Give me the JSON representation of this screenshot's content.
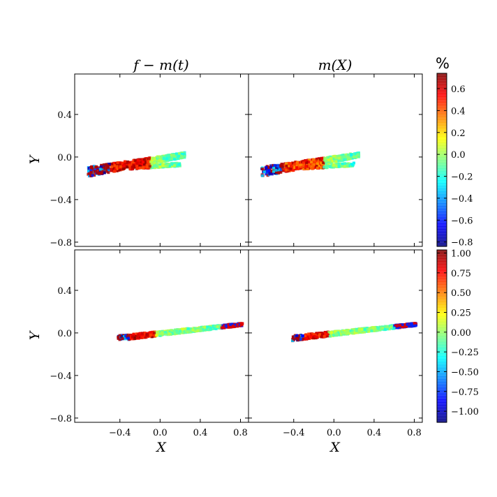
{
  "chart_data": {
    "type": "heatmap",
    "colormap": "jet",
    "panel_titles": [
      "f − m(t)",
      "m(X)"
    ],
    "xlabel": "X",
    "ylabel": "Y",
    "xlim": [
      -0.85,
      0.88
    ],
    "ylim": [
      -0.84,
      0.78
    ],
    "xticks": [
      -0.4,
      0.0,
      0.4,
      0.8
    ],
    "yticks": [
      -0.8,
      -0.4,
      0.0,
      0.4
    ],
    "xtick_labels": [
      "−0.4",
      "0.0",
      "0.4",
      "0.8"
    ],
    "ytick_labels": [
      "−0.8",
      "−0.4",
      "0.0",
      "0.4"
    ],
    "colorbars": [
      {
        "unit": "%",
        "range": [
          -0.84,
          0.74
        ],
        "ticks": [
          -0.8,
          -0.6,
          -0.4,
          -0.2,
          0.0,
          0.2,
          0.4,
          0.6
        ],
        "tick_labels": [
          "−0.8",
          "−0.6",
          "−0.4",
          "−0.2",
          "0.0",
          "0.2",
          "0.4",
          "0.6"
        ]
      },
      {
        "range": [
          -1.14,
          1.04
        ],
        "ticks": [
          -1.0,
          -0.75,
          -0.5,
          -0.25,
          0.0,
          0.25,
          0.5,
          0.75,
          1.0
        ],
        "tick_labels": [
          "−1.00",
          "−0.75",
          "−0.50",
          "−0.25",
          "0.00",
          "0.25",
          "0.50",
          "0.75",
          "1.00"
        ]
      }
    ],
    "distributions": [
      {
        "panel": "top",
        "x_range": [
          -0.72,
          0.25
        ],
        "band": [
          [
            -0.72,
            -0.14
          ],
          [
            0.25,
            0.02
          ]
        ],
        "band_width": 0.09,
        "secondary_band": [
          [
            -0.3,
            -0.1
          ],
          [
            0.2,
            -0.07
          ]
        ],
        "value_high_region": [
          -0.5,
          -0.1
        ],
        "value_range": [
          -0.84,
          0.74
        ]
      },
      {
        "panel": "bottom",
        "x_range": [
          -0.42,
          0.82
        ],
        "band": [
          [
            -0.42,
            -0.05
          ],
          [
            0.82,
            0.08
          ]
        ],
        "band_width": 0.05,
        "value_high_region": [
          -0.3,
          -0.05
        ],
        "value_range": [
          -1.14,
          1.04
        ]
      }
    ]
  }
}
